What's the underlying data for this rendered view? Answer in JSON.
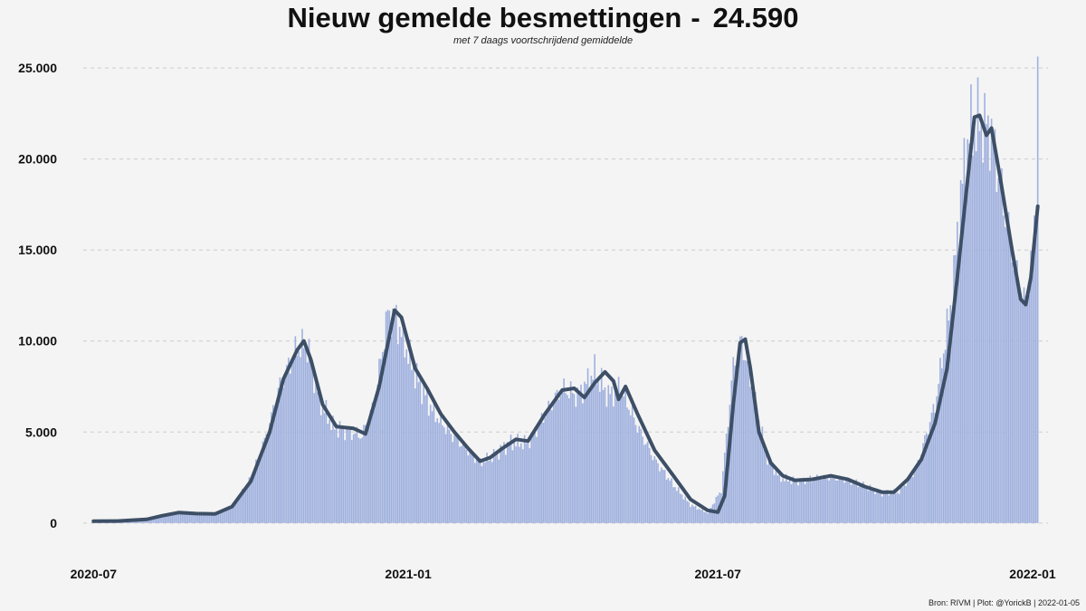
{
  "header": {
    "title": "Nieuw gemelde besmettingen",
    "separator": "-",
    "latest_value": "24.590",
    "subtitle": "met 7 daags voortschrijdend gemiddelde"
  },
  "caption": "Bron: RIVM | Plot: @YorickB |  2022-01-05",
  "colors": {
    "background": "#f4f4f4",
    "bars": "#9fb0de",
    "average_line": "#3d4f66",
    "gridline": "#cccccc"
  },
  "chart_data": {
    "type": "bar",
    "overlay": "line",
    "title": "Nieuw gemelde besmettingen",
    "subtitle": "met 7 daags voortschrijdend gemiddelde",
    "latest_value": 24590,
    "x_range": [
      "2020-06-25",
      "2022-01-10"
    ],
    "xtick_labels": [
      {
        "date": "2020-07-01",
        "label": "2020-07"
      },
      {
        "date": "2021-01-01",
        "label": "2021-01"
      },
      {
        "date": "2021-07-01",
        "label": "2021-07"
      },
      {
        "date": "2022-01-01",
        "label": "2022-01"
      }
    ],
    "y_range": [
      -1500,
      26000
    ],
    "yticks": [
      0,
      5000,
      10000,
      15000,
      20000,
      25000
    ],
    "ytick_labels": [
      "0",
      "5.000",
      "10.000",
      "15.000",
      "20.000",
      "25.000"
    ],
    "grid": "horizontal dashed",
    "series": [
      {
        "kind": "bars",
        "values_by_date": [
          [
            "2020-07-01",
            100
          ],
          [
            "2020-07-20",
            130
          ],
          [
            "2020-08-01",
            250
          ],
          [
            "2020-08-15",
            550
          ],
          [
            "2020-08-25",
            530
          ],
          [
            "2020-09-10",
            520
          ],
          [
            "2020-09-20",
            900
          ],
          [
            "2020-10-01",
            2400
          ],
          [
            "2020-10-10",
            4800
          ],
          [
            "2020-10-18",
            7600
          ],
          [
            "2020-10-28",
            9600
          ],
          [
            "2020-11-03",
            9800
          ],
          [
            "2020-11-10",
            6800
          ],
          [
            "2020-11-18",
            5300
          ],
          [
            "2020-11-28",
            5000
          ],
          [
            "2020-12-05",
            4800
          ],
          [
            "2020-12-12",
            6500
          ],
          [
            "2020-12-20",
            11500
          ],
          [
            "2020-12-25",
            11200
          ],
          [
            "2021-01-05",
            8200
          ],
          [
            "2021-01-15",
            6200
          ],
          [
            "2021-01-25",
            5000
          ],
          [
            "2021-02-05",
            4000
          ],
          [
            "2021-02-12",
            3300
          ],
          [
            "2021-02-20",
            3700
          ],
          [
            "2021-03-01",
            4400
          ],
          [
            "2021-03-12",
            4400
          ],
          [
            "2021-03-22",
            6000
          ],
          [
            "2021-04-01",
            7400
          ],
          [
            "2021-04-10",
            7000
          ],
          [
            "2021-04-20",
            8300
          ],
          [
            "2021-04-28",
            7000
          ],
          [
            "2021-05-05",
            7500
          ],
          [
            "2021-05-15",
            5300
          ],
          [
            "2021-05-25",
            3500
          ],
          [
            "2021-06-05",
            2100
          ],
          [
            "2021-06-15",
            1000
          ],
          [
            "2021-06-25",
            560
          ],
          [
            "2021-07-03",
            1800
          ],
          [
            "2021-07-10",
            8600
          ],
          [
            "2021-07-15",
            10000
          ],
          [
            "2021-07-22",
            7000
          ],
          [
            "2021-07-30",
            3600
          ],
          [
            "2021-08-06",
            2500
          ],
          [
            "2021-08-15",
            2300
          ],
          [
            "2021-09-01",
            2500
          ],
          [
            "2021-09-15",
            2400
          ],
          [
            "2021-09-25",
            2000
          ],
          [
            "2021-10-05",
            1650
          ],
          [
            "2021-10-15",
            1700
          ],
          [
            "2021-10-25",
            3000
          ],
          [
            "2021-11-05",
            6500
          ],
          [
            "2021-11-15",
            12500
          ],
          [
            "2021-11-20",
            18000
          ],
          [
            "2021-11-25",
            21500
          ],
          [
            "2021-12-01",
            22100
          ],
          [
            "2021-12-08",
            21500
          ],
          [
            "2021-12-15",
            17500
          ],
          [
            "2021-12-22",
            14000
          ],
          [
            "2021-12-27",
            12000
          ],
          [
            "2022-01-01",
            14500
          ],
          [
            "2022-01-03",
            18600
          ],
          [
            "2022-01-04",
            24590
          ]
        ]
      },
      {
        "kind": "line",
        "name": "7 daags voortschrijdend gemiddelde",
        "points": [
          [
            "2020-07-01",
            100
          ],
          [
            "2020-07-15",
            110
          ],
          [
            "2020-08-01",
            200
          ],
          [
            "2020-08-10",
            400
          ],
          [
            "2020-08-20",
            580
          ],
          [
            "2020-08-30",
            520
          ],
          [
            "2020-09-10",
            500
          ],
          [
            "2020-09-20",
            900
          ],
          [
            "2020-10-01",
            2300
          ],
          [
            "2020-10-12",
            5000
          ],
          [
            "2020-10-20",
            7900
          ],
          [
            "2020-10-28",
            9500
          ],
          [
            "2020-11-01",
            10000
          ],
          [
            "2020-11-05",
            9000
          ],
          [
            "2020-11-12",
            6500
          ],
          [
            "2020-11-20",
            5300
          ],
          [
            "2020-11-30",
            5200
          ],
          [
            "2020-12-07",
            4900
          ],
          [
            "2020-12-15",
            7500
          ],
          [
            "2020-12-24",
            11700
          ],
          [
            "2020-12-28",
            11300
          ],
          [
            "2021-01-05",
            8500
          ],
          [
            "2021-01-12",
            7400
          ],
          [
            "2021-01-20",
            6000
          ],
          [
            "2021-01-28",
            5000
          ],
          [
            "2021-02-05",
            4100
          ],
          [
            "2021-02-12",
            3400
          ],
          [
            "2021-02-18",
            3600
          ],
          [
            "2021-02-25",
            4100
          ],
          [
            "2021-03-05",
            4600
          ],
          [
            "2021-03-12",
            4500
          ],
          [
            "2021-03-22",
            6000
          ],
          [
            "2021-04-01",
            7300
          ],
          [
            "2021-04-08",
            7400
          ],
          [
            "2021-04-14",
            6900
          ],
          [
            "2021-04-20",
            7700
          ],
          [
            "2021-04-26",
            8300
          ],
          [
            "2021-05-01",
            7800
          ],
          [
            "2021-05-04",
            6800
          ],
          [
            "2021-05-08",
            7500
          ],
          [
            "2021-05-15",
            6000
          ],
          [
            "2021-05-25",
            4000
          ],
          [
            "2021-06-05",
            2600
          ],
          [
            "2021-06-15",
            1300
          ],
          [
            "2021-06-25",
            700
          ],
          [
            "2021-07-01",
            600
          ],
          [
            "2021-07-05",
            1500
          ],
          [
            "2021-07-10",
            6500
          ],
          [
            "2021-07-14",
            9900
          ],
          [
            "2021-07-17",
            10100
          ],
          [
            "2021-07-20",
            8500
          ],
          [
            "2021-07-25",
            5000
          ],
          [
            "2021-08-01",
            3300
          ],
          [
            "2021-08-08",
            2600
          ],
          [
            "2021-08-15",
            2350
          ],
          [
            "2021-08-25",
            2400
          ],
          [
            "2021-09-05",
            2600
          ],
          [
            "2021-09-15",
            2400
          ],
          [
            "2021-09-25",
            2000
          ],
          [
            "2021-10-05",
            1700
          ],
          [
            "2021-10-12",
            1700
          ],
          [
            "2021-10-20",
            2400
          ],
          [
            "2021-10-28",
            3500
          ],
          [
            "2021-11-05",
            5500
          ],
          [
            "2021-11-12",
            8500
          ],
          [
            "2021-11-18",
            13500
          ],
          [
            "2021-11-23",
            18000
          ],
          [
            "2021-11-28",
            22300
          ],
          [
            "2021-12-01",
            22400
          ],
          [
            "2021-12-05",
            21300
          ],
          [
            "2021-12-08",
            21700
          ],
          [
            "2021-12-13",
            19000
          ],
          [
            "2021-12-20",
            15000
          ],
          [
            "2021-12-25",
            12300
          ],
          [
            "2021-12-28",
            12000
          ],
          [
            "2021-12-31",
            13500
          ],
          [
            "2022-01-04",
            17400
          ]
        ]
      }
    ]
  }
}
